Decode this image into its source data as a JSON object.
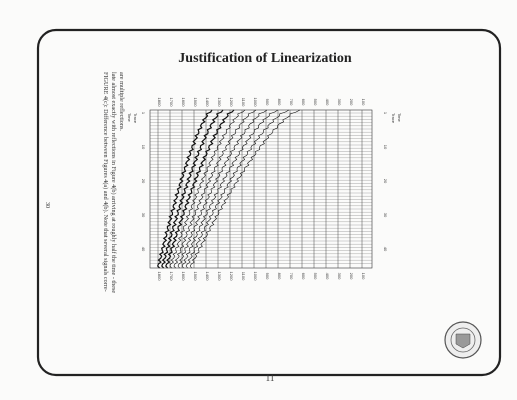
{
  "header": {
    "title": "Justification of Linearization"
  },
  "figure": {
    "trace_label": "Trace",
    "time_label": "Time",
    "trace_ticks": [
      "1",
      "10",
      "20",
      "30",
      "40"
    ],
    "time_ticks": [
      "100",
      "200",
      "300",
      "400",
      "500",
      "600",
      "700",
      "800",
      "900",
      "1000",
      "1100",
      "1200",
      "1300",
      "1400",
      "1500",
      "1600",
      "1700",
      "1800"
    ],
    "caption_lines": [
      "FIGURE 4(c): Difference between Figures 4(a) and 4(b). Note that several signals corre-",
      "late almost exactly with reflections in Figure 4(b) arriving at roughly half the time - these",
      "are multiple reflections."
    ]
  },
  "side_number": "30",
  "page_number": "11"
}
